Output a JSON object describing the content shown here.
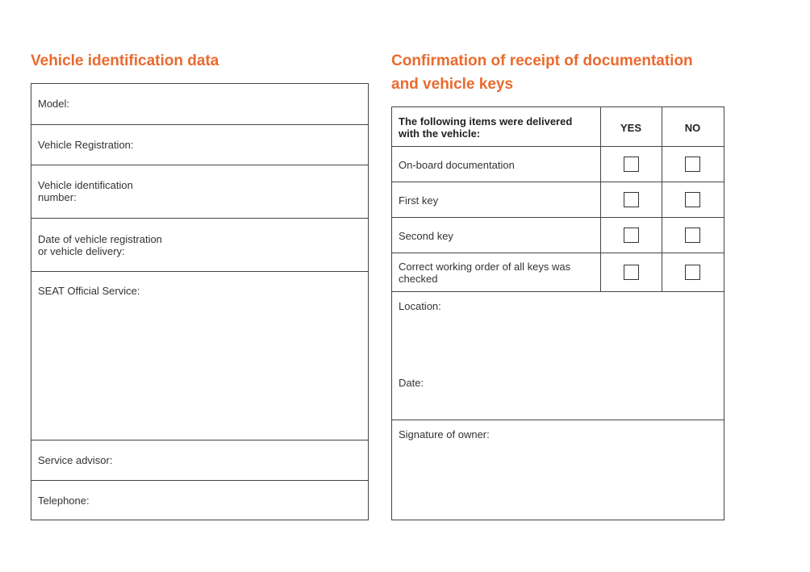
{
  "left": {
    "title": "Vehicle identification data",
    "fields": [
      "Model:",
      "Vehicle Registration:",
      "Vehicle identification\nnumber:",
      "Date of vehicle registration\nor vehicle delivery:",
      "SEAT Official Service:",
      "Service advisor:",
      "Telephone:"
    ]
  },
  "right": {
    "title_line1": "Confirmation of receipt of documentation",
    "title_line2": "and vehicle keys",
    "header": {
      "items": "The following items were delivered with the vehicle:",
      "yes": "YES",
      "no": "NO"
    },
    "items": [
      {
        "label": "On-board documentation",
        "yes": false,
        "no": false
      },
      {
        "label": "First key",
        "yes": false,
        "no": false
      },
      {
        "label": "Second key",
        "yes": false,
        "no": false
      },
      {
        "label": "Correct working order of all keys was checked",
        "yes": false,
        "no": false
      }
    ],
    "location": "Location:",
    "date": "Date:",
    "signature": "Signature of owner:"
  },
  "colors": {
    "accent": "#ea6a2e"
  }
}
